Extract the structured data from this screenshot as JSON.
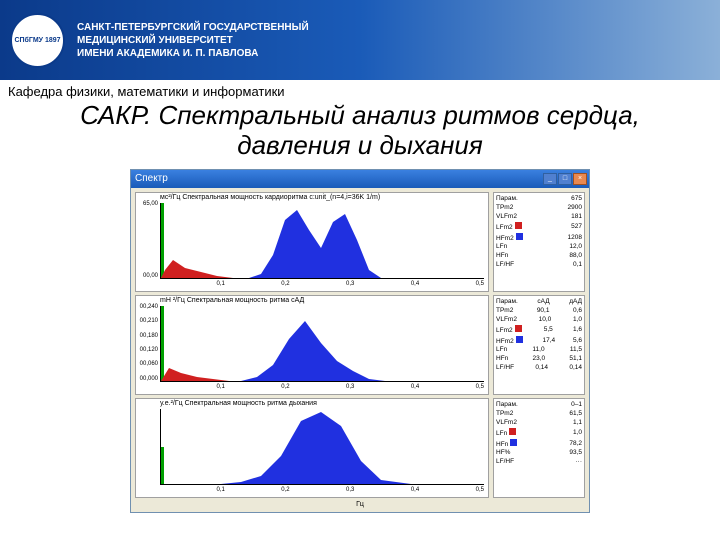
{
  "header": {
    "emblem": "СПбГМУ\n1897",
    "uni_line1": "САНКТ-ПЕТЕРБУРГСКИЙ ГОСУДАРСТВЕННЫЙ",
    "uni_line2": "МЕДИЦИНСКИЙ УНИВЕРСИТЕТ",
    "uni_line3": "ИМЕНИ АКАДЕМИКА И. П. ПАВЛОВА"
  },
  "dept": "Кафедра физики, математики и информатики",
  "title": "САКР. Спектральный анализ ритмов сердца, давления и дыхания",
  "window": {
    "title": "Спектр"
  },
  "colors": {
    "green": "#00b000",
    "red": "#d02020",
    "blue": "#2030e0",
    "bg": "#ffffff",
    "axis": "#000000"
  },
  "chart1": {
    "title": "мс²/Гц   Спектральная мощность кардиоритма c:unit_(n=4,i=36K 1/m)",
    "ymax": 65.0,
    "yticks": [
      "65,00",
      "",
      "",
      "",
      "",
      "00,00"
    ],
    "xticks": [
      "",
      "0,1",
      "0,2",
      "0,3",
      "0,4",
      "0,5"
    ],
    "red_poly": "0,78 4,70 12,60 24,68 40,72 56,76 72,78 88,78",
    "blue_poly": "88,78 100,74 112,55 124,20 136,10 148,30 160,48 172,22 184,14 196,40 208,70 220,78 250,78",
    "spike_h": 78
  },
  "legend1": {
    "rows": [
      {
        "k": "Парам.",
        "v": "675"
      },
      {
        "k": "TPm2",
        "v": "2900"
      },
      {
        "k": "VLFm2",
        "v": "181"
      },
      {
        "k": "LFm2",
        "v": "527",
        "sw": "#d02020"
      },
      {
        "k": "HFm2",
        "v": "1208",
        "sw": "#2030e0"
      },
      {
        "k": "LFn",
        "v": "12,0"
      },
      {
        "k": "HFn",
        "v": "88,0"
      },
      {
        "k": "LF/HF",
        "v": "0,1"
      }
    ]
  },
  "chart2": {
    "title": "mH ²/Гц   Спектральная мощность ритма сАД",
    "yticks": [
      "00,240",
      "00,210",
      "00,180",
      "00,120",
      "00,060",
      "00,000"
    ],
    "xticks": [
      "",
      "0,1",
      "0,2",
      "0,3",
      "0,4",
      "0,5"
    ],
    "red_poly": "0,78 8,65 20,70 36,74 52,76 68,78 80,78",
    "blue_poly": "80,78 96,74 112,62 128,36 144,18 160,40 176,58 192,68 208,76 224,78 250,78",
    "spike_h": 78
  },
  "legend2": {
    "hdr": {
      "a": "Парам.",
      "b": "сАД",
      "c": "дАД"
    },
    "rows": [
      {
        "k": "TPm2",
        "a": "90,1",
        "b": "0,6"
      },
      {
        "k": "VLFm2",
        "a": "10,0",
        "b": "1,0"
      },
      {
        "k": "LFm2",
        "a": "5,5",
        "b": "1,6",
        "sw": "#d02020"
      },
      {
        "k": "HFm2",
        "a": "17,4",
        "b": "5,6",
        "sw": "#2030e0"
      },
      {
        "k": "LFn",
        "a": "11,0",
        "b": "11,5"
      },
      {
        "k": "HFn",
        "a": "23,0",
        "b": "51,1"
      },
      {
        "k": "LF/HF",
        "a": "0,14",
        "b": "0,14"
      }
    ]
  },
  "chart3": {
    "title": "у.е.²/Гц   Спектральная мощность ритма дыхания",
    "yticks": [
      "",
      "",
      "",
      "",
      "",
      ""
    ],
    "xticks": [
      "",
      "0,1",
      "0,2",
      "0,3",
      "0,4",
      "0,5"
    ],
    "xlabel": "Гц",
    "blue_poly": "0,78 60,78 80,76 100,70 120,50 140,15 160,6 180,20 200,55 220,74 250,78",
    "spike_h": 40
  },
  "legend3": {
    "rows": [
      {
        "k": "Парам.",
        "v": "0–1"
      },
      {
        "k": "TPm2",
        "v": "61,5"
      },
      {
        "k": "VLFm2",
        "v": "1,1"
      },
      {
        "k": "LFn",
        "v": "1,0",
        "sw": "#d02020"
      },
      {
        "k": "HFn",
        "v": "78,2",
        "sw": "#2030e0"
      },
      {
        "k": "HF%",
        "v": "93,5"
      },
      {
        "k": "LF/HF",
        "v": "···"
      }
    ]
  }
}
